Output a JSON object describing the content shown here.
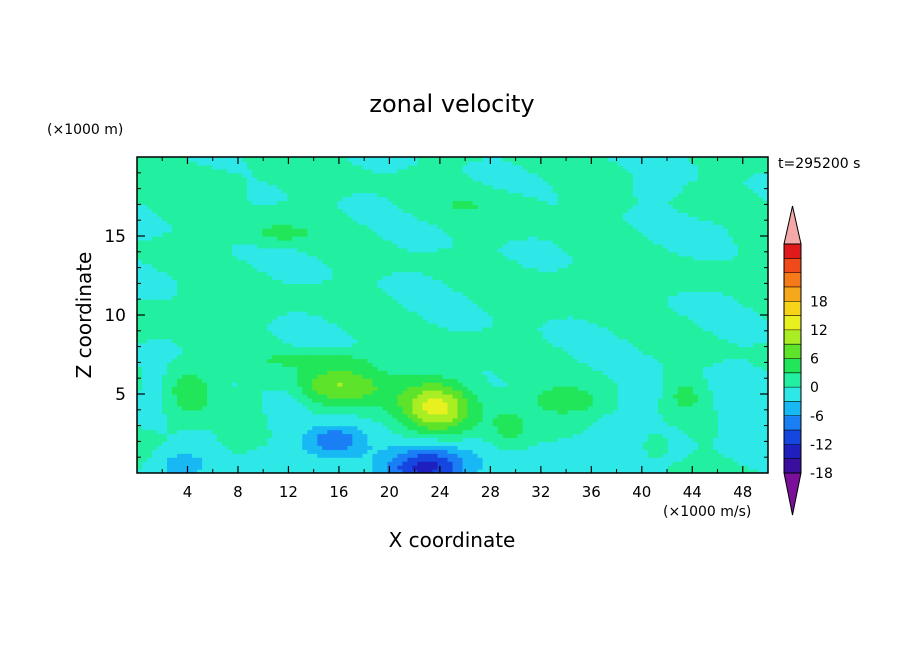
{
  "chart_data": {
    "type": "heatmap",
    "title": "zonal velocity",
    "xlabel": "X coordinate",
    "ylabel": "Z coordinate",
    "y_unit": "(×1000 m)",
    "x_unit": "(×1000 m/s)",
    "time_label": "t=295200 s",
    "xlim": [
      0,
      50
    ],
    "ylim": [
      0,
      20
    ],
    "x_ticks": [
      4,
      8,
      12,
      16,
      20,
      24,
      28,
      32,
      36,
      40,
      44,
      48
    ],
    "y_ticks": [
      5,
      10,
      15
    ],
    "colorbar": {
      "min": -21,
      "max": 21,
      "step": 3,
      "labels": [
        18,
        12,
        6,
        0,
        -6,
        -12,
        -18
      ],
      "colors": [
        "#7a0f9a",
        "#3a0f9e",
        "#1f1fbe",
        "#1646e0",
        "#1a7ef5",
        "#18b8f5",
        "#2ee8e8",
        "#22f0a0",
        "#22e65a",
        "#5de32a",
        "#a8ee22",
        "#e8f020",
        "#f5d41a",
        "#f5a81a",
        "#f57a1a",
        "#f04a1a",
        "#e01a1a",
        "#f4a8a8"
      ]
    },
    "features": [
      {
        "x": 4.2,
        "z": 5.3,
        "value": 5.5,
        "sx": 2.0,
        "sz": 1.6
      },
      {
        "x": 8.0,
        "z": 2.5,
        "value": 2.5,
        "sx": 1.5,
        "sz": 1.2
      },
      {
        "x": 16.0,
        "z": 5.5,
        "value": 9.0,
        "sx": 3.6,
        "sz": 1.4
      },
      {
        "x": 23.8,
        "z": 4.2,
        "value": 12.0,
        "sx": 3.0,
        "sz": 1.7
      },
      {
        "x": 29.5,
        "z": 2.8,
        "value": 4.0,
        "sx": 1.5,
        "sz": 1.3
      },
      {
        "x": 34.0,
        "z": 4.6,
        "value": 5.5,
        "sx": 3.0,
        "sz": 0.9
      },
      {
        "x": 43.5,
        "z": 5.0,
        "value": 3.5,
        "sx": 1.2,
        "sz": 1.0
      },
      {
        "x": 41.0,
        "z": 1.8,
        "value": 3.0,
        "sx": 0.9,
        "sz": 0.7
      },
      {
        "x": 11.0,
        "z": 15.2,
        "value": 4.0,
        "sx": 3.0,
        "sz": 0.7
      },
      {
        "x": 27.0,
        "z": 17.0,
        "value": 2.0,
        "sx": 5.0,
        "sz": 1.0
      },
      {
        "x": 14.0,
        "z": 7.2,
        "value": 3.0,
        "sx": 5.0,
        "sz": 0.5
      },
      {
        "x": 23.0,
        "z": 0.4,
        "value": -14.0,
        "sx": 3.5,
        "sz": 1.4
      },
      {
        "x": 15.5,
        "z": 2.0,
        "value": -9.0,
        "sx": 2.5,
        "sz": 1.1
      },
      {
        "x": 3.5,
        "z": 0.5,
        "value": -6.0,
        "sx": 2.2,
        "sz": 1.0
      },
      {
        "x": 36.0,
        "z": 1.0,
        "value": -4.0,
        "sx": 4.0,
        "sz": 1.3
      },
      {
        "x": 1.5,
        "z": 5.0,
        "value": -3.0,
        "sx": 1.5,
        "sz": 1.5
      },
      {
        "x": 12.0,
        "z": 4.0,
        "value": -3.5,
        "sx": 1.8,
        "sz": 1.8
      },
      {
        "x": 40.0,
        "z": 5.2,
        "value": -3.0,
        "sx": 1.5,
        "sz": 1.2
      },
      {
        "x": 47.5,
        "z": 4.0,
        "value": -2.5,
        "sx": 1.8,
        "sz": 2.0
      },
      {
        "x": 45.0,
        "z": 15.2,
        "value": -2.5,
        "sx": 1.5,
        "sz": 0.6
      },
      {
        "x": 41.0,
        "z": 18.0,
        "value": -2.0,
        "sx": 1.5,
        "sz": 0.6
      },
      {
        "x": 5.0,
        "z": 18.5,
        "value": 1.5,
        "sx": 5.0,
        "sz": 1.0
      },
      {
        "x": 38.0,
        "z": 12.5,
        "value": 1.8,
        "sx": 6.0,
        "sz": 1.0
      },
      {
        "x": 6.0,
        "z": 10.5,
        "value": 1.8,
        "sx": 5.0,
        "sz": 1.0
      }
    ]
  }
}
